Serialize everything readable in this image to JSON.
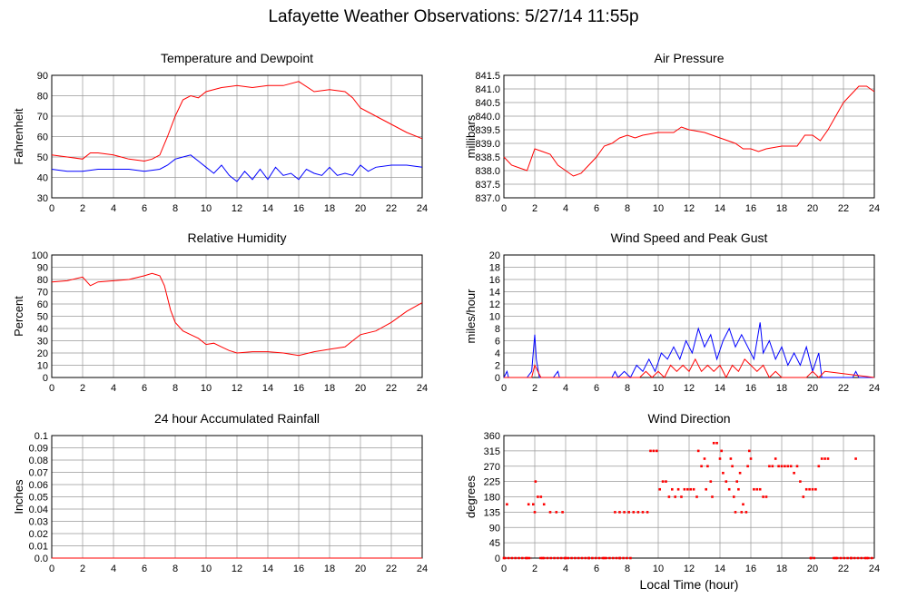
{
  "title": "Lafayette Weather Observations: 5/27/14 11:55p",
  "x_axis_label": "Local Time (hour)",
  "colors": {
    "series_red": "#ff0000",
    "series_blue": "#0000ff",
    "grid": "#999999"
  },
  "chart_data": [
    {
      "id": "temperature",
      "type": "line",
      "title": "Temperature and Dewpoint",
      "ylabel": "Fahrenheit",
      "xlim": [
        0,
        24
      ],
      "ylim": [
        30,
        90
      ],
      "xticks": [
        0,
        2,
        4,
        6,
        8,
        10,
        12,
        14,
        16,
        18,
        20,
        22,
        24
      ],
      "yticks": [
        30,
        40,
        50,
        60,
        70,
        80,
        90
      ],
      "grid": true,
      "series": [
        {
          "color": "#ff0000",
          "x": [
            0,
            1,
            2,
            2.5,
            3,
            4,
            5,
            6,
            6.5,
            7,
            7.5,
            8,
            8.5,
            9,
            9.5,
            10,
            11,
            12,
            13,
            14,
            15,
            16,
            17,
            18,
            19,
            19.5,
            20,
            20.5,
            21,
            22,
            23,
            24
          ],
          "y": [
            51,
            50,
            49,
            52,
            52,
            51,
            49,
            48,
            49,
            51,
            60,
            70,
            78,
            80,
            79,
            82,
            84,
            85,
            84,
            85,
            85,
            87,
            82,
            83,
            82,
            79,
            74,
            72,
            70,
            66,
            62,
            59
          ]
        },
        {
          "color": "#0000ff",
          "x": [
            0,
            1,
            2,
            3,
            4,
            5,
            6,
            7,
            7.5,
            8,
            8.5,
            9,
            9.5,
            10,
            10.5,
            11,
            11.5,
            12,
            12.5,
            13,
            13.5,
            14,
            14.5,
            15,
            15.5,
            16,
            16.5,
            17,
            17.5,
            18,
            18.5,
            19,
            19.5,
            20,
            20.5,
            21,
            22,
            23,
            24
          ],
          "y": [
            44,
            43,
            43,
            44,
            44,
            44,
            43,
            44,
            46,
            49,
            50,
            51,
            48,
            45,
            42,
            46,
            41,
            38,
            43,
            39,
            44,
            39,
            45,
            41,
            42,
            39,
            44,
            42,
            41,
            45,
            41,
            42,
            41,
            46,
            43,
            45,
            46,
            46,
            45
          ]
        }
      ]
    },
    {
      "id": "pressure",
      "type": "line",
      "title": "Air Pressure",
      "ylabel": "millibars",
      "xlim": [
        0,
        24
      ],
      "ylim": [
        837.0,
        841.5
      ],
      "xticks": [
        0,
        2,
        4,
        6,
        8,
        10,
        12,
        14,
        16,
        18,
        20,
        22,
        24
      ],
      "yticks": [
        837.0,
        837.5,
        838.0,
        838.5,
        839.0,
        839.5,
        840.0,
        840.5,
        841.0,
        841.5
      ],
      "grid": true,
      "series": [
        {
          "color": "#ff0000",
          "x": [
            0,
            0.5,
            1,
            1.5,
            2,
            2.5,
            3,
            3.5,
            4,
            4.5,
            5,
            5.5,
            6,
            6.5,
            7,
            7.5,
            8,
            8.5,
            9,
            10,
            11,
            11.5,
            12,
            13,
            14,
            15,
            15.5,
            16,
            16.5,
            17,
            18,
            19,
            19.5,
            20,
            20.5,
            21,
            21.5,
            22,
            22.5,
            23,
            23.5,
            24
          ],
          "y": [
            838.5,
            838.2,
            838.1,
            838.0,
            838.8,
            838.7,
            838.6,
            838.2,
            838.0,
            837.8,
            837.9,
            838.2,
            838.5,
            838.9,
            839.0,
            839.2,
            839.3,
            839.2,
            839.3,
            839.4,
            839.4,
            839.6,
            839.5,
            839.4,
            839.2,
            839.0,
            838.8,
            838.8,
            838.7,
            838.8,
            838.9,
            838.9,
            839.3,
            839.3,
            839.1,
            839.5,
            840.0,
            840.5,
            840.8,
            841.1,
            841.1,
            840.9
          ]
        }
      ]
    },
    {
      "id": "humidity",
      "type": "line",
      "title": "Relative Humidity",
      "ylabel": "Percent",
      "xlim": [
        0,
        24
      ],
      "ylim": [
        0,
        100
      ],
      "xticks": [
        0,
        2,
        4,
        6,
        8,
        10,
        12,
        14,
        16,
        18,
        20,
        22,
        24
      ],
      "yticks": [
        0,
        10,
        20,
        30,
        40,
        50,
        60,
        70,
        80,
        90,
        100
      ],
      "grid": true,
      "series": [
        {
          "color": "#ff0000",
          "x": [
            0,
            1,
            2,
            2.5,
            3,
            4,
            5,
            6,
            6.5,
            7,
            7.3,
            7.7,
            8,
            8.5,
            9,
            9.5,
            10,
            10.5,
            11,
            11.5,
            12,
            13,
            14,
            15,
            16,
            17,
            18,
            19,
            19.5,
            20,
            21,
            22,
            23,
            24
          ],
          "y": [
            78,
            79,
            82,
            75,
            78,
            79,
            80,
            83,
            85,
            83,
            75,
            55,
            45,
            38,
            35,
            32,
            27,
            28,
            25,
            22,
            20,
            21,
            21,
            20,
            18,
            21,
            23,
            25,
            30,
            35,
            38,
            45,
            54,
            61
          ]
        }
      ]
    },
    {
      "id": "wind_speed",
      "type": "line",
      "title": "Wind Speed and Peak Gust",
      "ylabel": "miles/hour",
      "xlim": [
        0,
        24
      ],
      "ylim": [
        0,
        20
      ],
      "xticks": [
        0,
        2,
        4,
        6,
        8,
        10,
        12,
        14,
        16,
        18,
        20,
        22,
        24
      ],
      "yticks": [
        0,
        2,
        4,
        6,
        8,
        10,
        12,
        14,
        16,
        18,
        20
      ],
      "grid": true,
      "series": [
        {
          "color": "#0000ff",
          "x": [
            0,
            0.2,
            0.3,
            0.5,
            1.5,
            1.8,
            2.0,
            2.1,
            2.3,
            2.6,
            3.2,
            3.5,
            3.6,
            3.8,
            7.0,
            7.2,
            7.4,
            7.8,
            8.2,
            8.6,
            9.0,
            9.4,
            9.8,
            10.2,
            10.6,
            11.0,
            11.4,
            11.8,
            12.2,
            12.6,
            13.0,
            13.4,
            13.8,
            14.2,
            14.6,
            15.0,
            15.4,
            15.8,
            16.2,
            16.6,
            16.8,
            17.2,
            17.6,
            18.0,
            18.4,
            18.8,
            19.2,
            19.6,
            20.0,
            20.4,
            20.6,
            21.0,
            22.6,
            22.8,
            23.0,
            24
          ],
          "y": [
            0,
            1,
            0,
            0,
            0,
            1,
            7,
            3,
            0,
            0,
            0,
            1,
            0,
            0,
            0,
            1,
            0,
            1,
            0,
            2,
            1,
            3,
            1,
            4,
            3,
            5,
            3,
            6,
            4,
            8,
            5,
            7,
            3,
            6,
            8,
            5,
            7,
            5,
            3,
            9,
            4,
            6,
            3,
            5,
            2,
            4,
            2,
            5,
            1,
            4,
            0,
            0,
            0,
            1,
            0,
            0
          ]
        },
        {
          "color": "#ff0000",
          "x": [
            0,
            1.8,
            2.0,
            2.2,
            2.4,
            8.8,
            9.2,
            9.6,
            10.0,
            10.4,
            10.8,
            11.2,
            11.6,
            12.0,
            12.4,
            12.8,
            13.2,
            13.6,
            14.0,
            14.4,
            14.8,
            15.2,
            15.6,
            16.0,
            16.4,
            16.8,
            17.2,
            17.6,
            18.0,
            19.6,
            20.0,
            20.4,
            20.8,
            24
          ],
          "y": [
            0,
            0,
            2,
            1,
            0,
            0,
            1,
            0,
            1,
            0,
            2,
            1,
            2,
            1,
            3,
            1,
            2,
            1,
            2,
            0,
            2,
            1,
            3,
            2,
            1,
            2,
            0,
            1,
            0,
            0,
            1,
            0,
            1,
            0
          ]
        }
      ]
    },
    {
      "id": "rainfall",
      "type": "line",
      "title": "24 hour Accumulated Rainfall",
      "ylabel": "Inches",
      "xlim": [
        0,
        24
      ],
      "ylim": [
        0.0,
        0.1
      ],
      "xticks": [
        0,
        2,
        4,
        6,
        8,
        10,
        12,
        14,
        16,
        18,
        20,
        22,
        24
      ],
      "yticks": [
        "0.0",
        "0.01",
        "0.02",
        "0.03",
        "0.04",
        "0.05",
        "0.06",
        "0.07",
        "0.08",
        "0.09",
        "0.1"
      ],
      "grid": true,
      "series": [
        {
          "color": "#ff0000",
          "x": [
            0,
            24
          ],
          "y": [
            0,
            0
          ]
        }
      ]
    },
    {
      "id": "wind_direction",
      "type": "scatter",
      "title": "Wind Direction",
      "ylabel": "degrees",
      "xlabel": "Local Time (hour)",
      "xlim": [
        0,
        24
      ],
      "ylim": [
        0,
        360
      ],
      "xticks": [
        0,
        2,
        4,
        6,
        8,
        10,
        12,
        14,
        16,
        18,
        20,
        22,
        24
      ],
      "yticks": [
        0,
        45,
        90,
        135,
        180,
        225,
        270,
        315,
        360
      ],
      "grid": true,
      "series": [
        {
          "color": "#ff0000",
          "points": [
            [
              0.2,
              158
            ],
            [
              1.6,
              158
            ],
            [
              1.9,
              158
            ],
            [
              2.0,
              135
            ],
            [
              2.05,
              225
            ],
            [
              2.2,
              180
            ],
            [
              2.4,
              180
            ],
            [
              2.6,
              158
            ],
            [
              3.0,
              135
            ],
            [
              3.4,
              135
            ],
            [
              3.8,
              135
            ],
            [
              7.2,
              135
            ],
            [
              7.5,
              135
            ],
            [
              7.8,
              135
            ],
            [
              8.1,
              135
            ],
            [
              8.4,
              135
            ],
            [
              8.7,
              135
            ],
            [
              9.0,
              135
            ],
            [
              9.3,
              135
            ],
            [
              9.5,
              315
            ],
            [
              9.7,
              315
            ],
            [
              9.9,
              315
            ],
            [
              10.1,
              202
            ],
            [
              10.3,
              225
            ],
            [
              10.5,
              225
            ],
            [
              10.7,
              180
            ],
            [
              10.9,
              202
            ],
            [
              11.1,
              180
            ],
            [
              11.3,
              202
            ],
            [
              11.5,
              180
            ],
            [
              11.7,
              202
            ],
            [
              11.9,
              202
            ],
            [
              12.1,
              202
            ],
            [
              12.3,
              202
            ],
            [
              12.5,
              180
            ],
            [
              12.6,
              315
            ],
            [
              12.8,
              270
            ],
            [
              13.0,
              292
            ],
            [
              13.1,
              202
            ],
            [
              13.2,
              270
            ],
            [
              13.4,
              225
            ],
            [
              13.5,
              180
            ],
            [
              13.6,
              338
            ],
            [
              13.8,
              338
            ],
            [
              14.0,
              292
            ],
            [
              14.1,
              315
            ],
            [
              14.2,
              250
            ],
            [
              14.4,
              225
            ],
            [
              14.6,
              202
            ],
            [
              14.7,
              292
            ],
            [
              14.8,
              270
            ],
            [
              14.9,
              180
            ],
            [
              15.0,
              135
            ],
            [
              15.1,
              225
            ],
            [
              15.2,
              202
            ],
            [
              15.3,
              250
            ],
            [
              15.4,
              135
            ],
            [
              15.5,
              158
            ],
            [
              15.7,
              135
            ],
            [
              15.8,
              270
            ],
            [
              15.9,
              315
            ],
            [
              16.0,
              292
            ],
            [
              16.2,
              202
            ],
            [
              16.4,
              202
            ],
            [
              16.6,
              202
            ],
            [
              16.8,
              180
            ],
            [
              17.0,
              180
            ],
            [
              17.2,
              270
            ],
            [
              17.4,
              270
            ],
            [
              17.6,
              292
            ],
            [
              17.8,
              270
            ],
            [
              18.0,
              270
            ],
            [
              18.2,
              270
            ],
            [
              18.4,
              270
            ],
            [
              18.6,
              270
            ],
            [
              18.8,
              250
            ],
            [
              19.0,
              270
            ],
            [
              19.2,
              225
            ],
            [
              19.4,
              180
            ],
            [
              19.6,
              202
            ],
            [
              19.8,
              202
            ],
            [
              20.0,
              202
            ],
            [
              20.2,
              202
            ],
            [
              20.4,
              270
            ],
            [
              20.6,
              292
            ],
            [
              20.8,
              292
            ],
            [
              21.0,
              292
            ],
            [
              22.8,
              292
            ],
            [
              0.0,
              0
            ],
            [
              1.5,
              0
            ],
            [
              2.5,
              0
            ],
            [
              4.0,
              0
            ],
            [
              5.5,
              0
            ],
            [
              6.5,
              0
            ],
            [
              7.5,
              0
            ],
            [
              8.2,
              0
            ],
            [
              19.9,
              0
            ],
            [
              21.5,
              0
            ],
            [
              22.5,
              0
            ],
            [
              23.5,
              0
            ]
          ]
        }
      ],
      "zero_runs": [
        [
          0.0,
          1.8
        ],
        [
          2.3,
          8.1
        ],
        [
          19.8,
          20.2
        ],
        [
          21.3,
          24.0
        ]
      ]
    }
  ]
}
